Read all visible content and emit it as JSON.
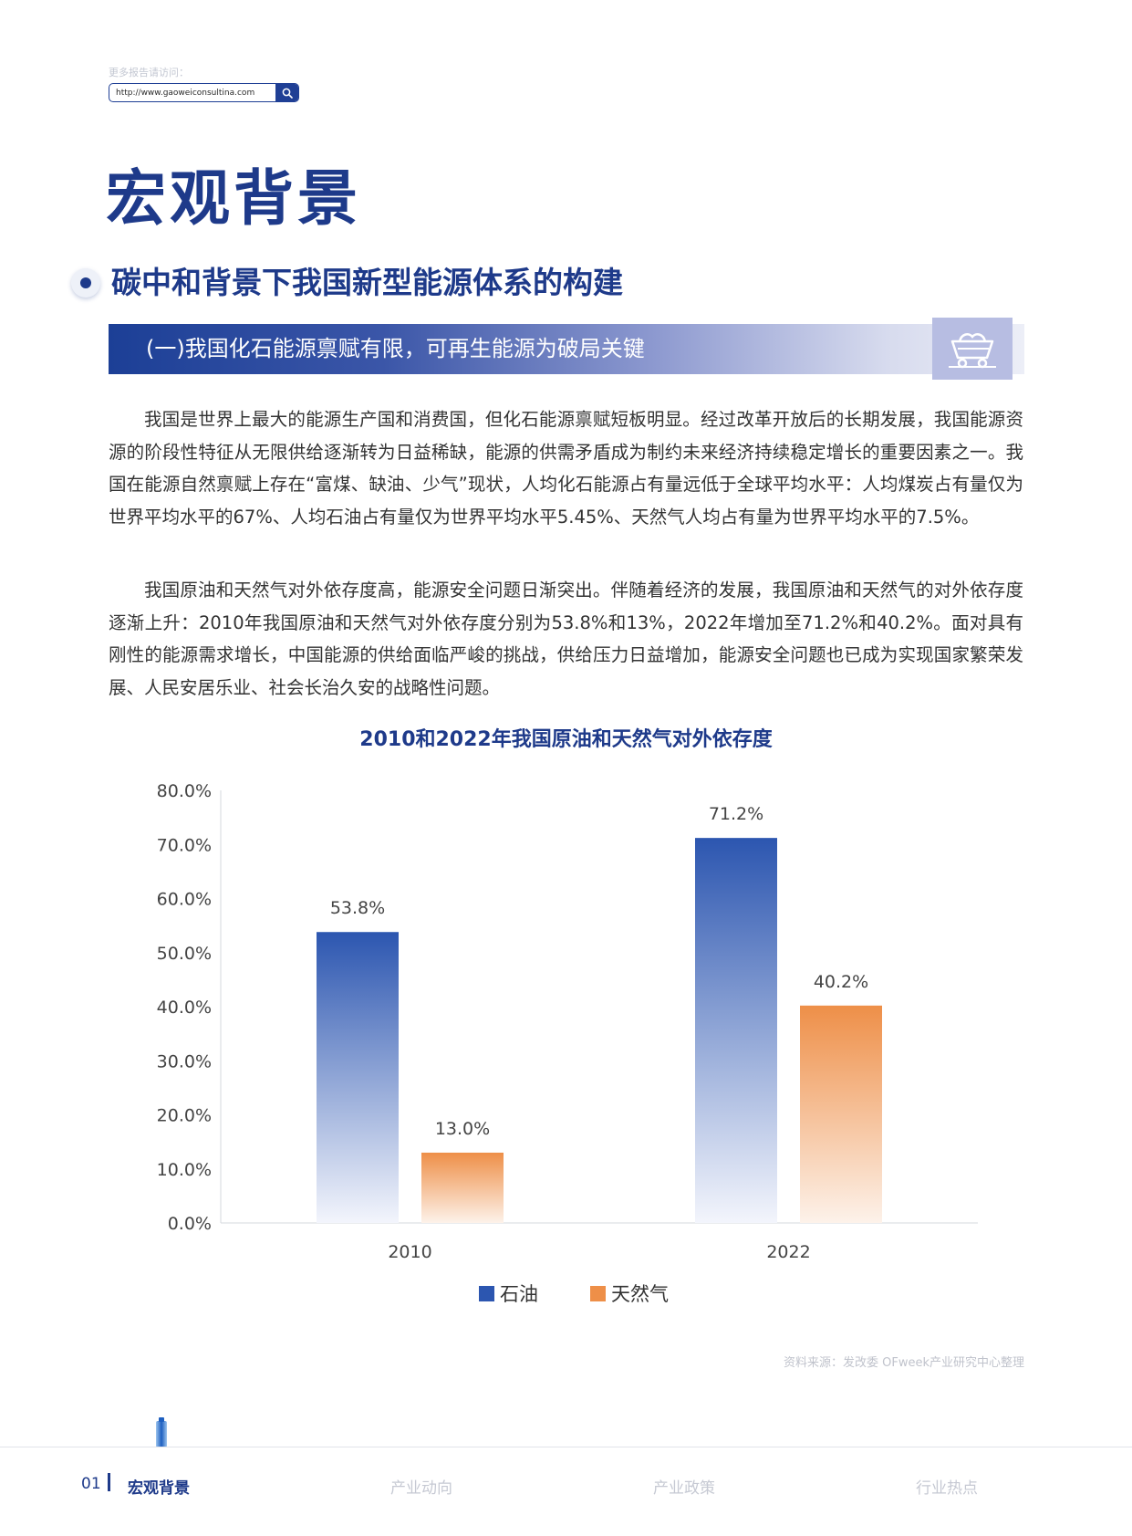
{
  "header": {
    "hint": "更多报告请访问：",
    "url": "http://www.gaoweiconsultina.com",
    "search_icon": "search-icon"
  },
  "page_title": "宏观背景",
  "section_heading": "碳中和背景下我国新型能源体系的构建",
  "sub_heading": "(一)我国化石能源禀赋有限，可再生能源为破局关键",
  "sub_heading_icon": "mine-cart-icon",
  "paragraphs": [
    "我国是世界上最大的能源生产国和消费国，但化石能源禀赋短板明显。经过改革开放后的长期发展，我国能源资源的阶段性特征从无限供给逐渐转为日益稀缺，能源的供需矛盾成为制约未来经济持续稳定增长的重要因素之一。我国在能源自然禀赋上存在“富煤、缺油、少气”现状，人均化石能源占有量远低于全球平均水平：人均煤炭占有量仅为世界平均水平的67%、人均石油占有量仅为世界平均水平5.45%、天然气人均占有量为世界平均水平的7.5%。",
    "我国原油和天然气对外依存度高，能源安全问题日渐突出。伴随着经济的发展，我国原油和天然气的对外依存度逐渐上升：2010年我国原油和天然气对外依存度分别为53.8%和13%，2022年增加至71.2%和40.2%。面对具有刚性的能源需求增长，中国能源的供给面临严峻的挑战，供给压力日益增加，能源安全问题也已成为实现国家繁荣发展、人民安居乐业、社会长治久安的战略性问题。"
  ],
  "chart_data": {
    "type": "bar",
    "title": "2010和2022年我国原油和天然气对外依存度",
    "categories": [
      "2010",
      "2022"
    ],
    "series": [
      {
        "name": "石油",
        "values": [
          53.8,
          71.2
        ],
        "labels": [
          "53.8%",
          "71.2%"
        ],
        "color": "#2c56b0"
      },
      {
        "name": "天然气",
        "values": [
          13.0,
          40.2
        ],
        "labels": [
          "13.0%",
          "40.2%"
        ],
        "color": "#ee8f48"
      }
    ],
    "ylim": [
      0,
      80
    ],
    "yticks": [
      "0.0%",
      "10.0%",
      "20.0%",
      "30.0%",
      "40.0%",
      "50.0%",
      "60.0%",
      "70.0%",
      "80.0%"
    ],
    "xlabel": "",
    "ylabel": "",
    "grid": false,
    "legend": "bottom-center"
  },
  "source": "资料来源：发改委 OFweek产业研究中心整理",
  "footer": {
    "page_number": "01",
    "nav": [
      "宏观背景",
      "产业动向",
      "产业政策",
      "行业热点"
    ]
  }
}
